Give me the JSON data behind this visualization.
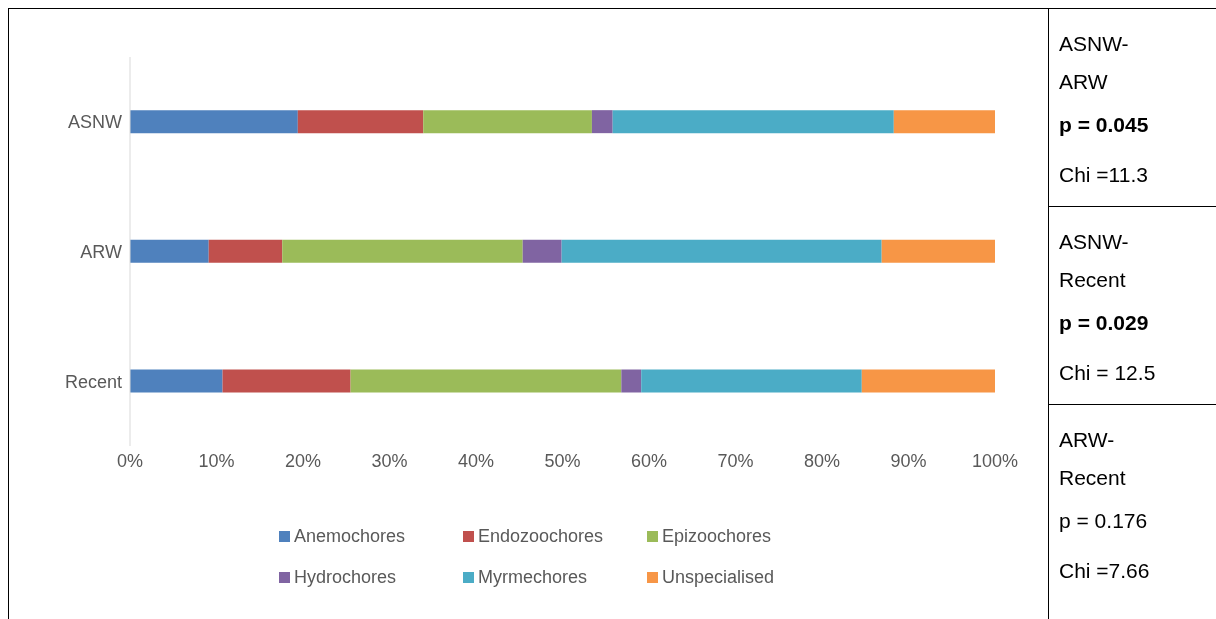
{
  "chart_data": {
    "type": "bar",
    "orientation": "horizontal",
    "stacked": true,
    "categories": [
      "ASNW",
      "ARW",
      "Recent"
    ],
    "series": [
      {
        "name": "Anemochores",
        "color": "#4f81bd",
        "values": [
          19.4,
          9.1,
          10.7
        ]
      },
      {
        "name": "Endozoochores",
        "color": "#c0504d",
        "values": [
          14.5,
          8.5,
          14.8
        ]
      },
      {
        "name": "Epizoochores",
        "color": "#9bbb59",
        "values": [
          19.5,
          27.8,
          31.3
        ]
      },
      {
        "name": "Hydrochores",
        "color": "#8064a2",
        "values": [
          2.4,
          4.5,
          2.3
        ]
      },
      {
        "name": "Myrmechores",
        "color": "#4bacc6",
        "values": [
          32.5,
          37.0,
          25.5
        ]
      },
      {
        "name": "Unspecialised",
        "color": "#f79646",
        "values": [
          11.7,
          13.1,
          15.4
        ]
      }
    ],
    "xlim": [
      0,
      100
    ],
    "xticks": [
      {
        "value": 0,
        "label": "0%"
      },
      {
        "value": 10,
        "label": "10%"
      },
      {
        "value": 20,
        "label": "20%"
      },
      {
        "value": 30,
        "label": "30%"
      },
      {
        "value": 40,
        "label": "40%"
      },
      {
        "value": 50,
        "label": "50%"
      },
      {
        "value": 60,
        "label": "60%"
      },
      {
        "value": 70,
        "label": "70%"
      },
      {
        "value": 80,
        "label": "80%"
      },
      {
        "value": 90,
        "label": "90%"
      },
      {
        "value": 100,
        "label": "100%"
      }
    ],
    "legend": "bottom",
    "annotations": [
      "ASNW-ARW",
      "p = 0.045",
      "Chi =11.3",
      "ASNW-Recent",
      "p = 0.029",
      "Chi = 12.5",
      "ARW-Recent",
      "p = 0.176",
      "Chi =7.66"
    ]
  }
}
